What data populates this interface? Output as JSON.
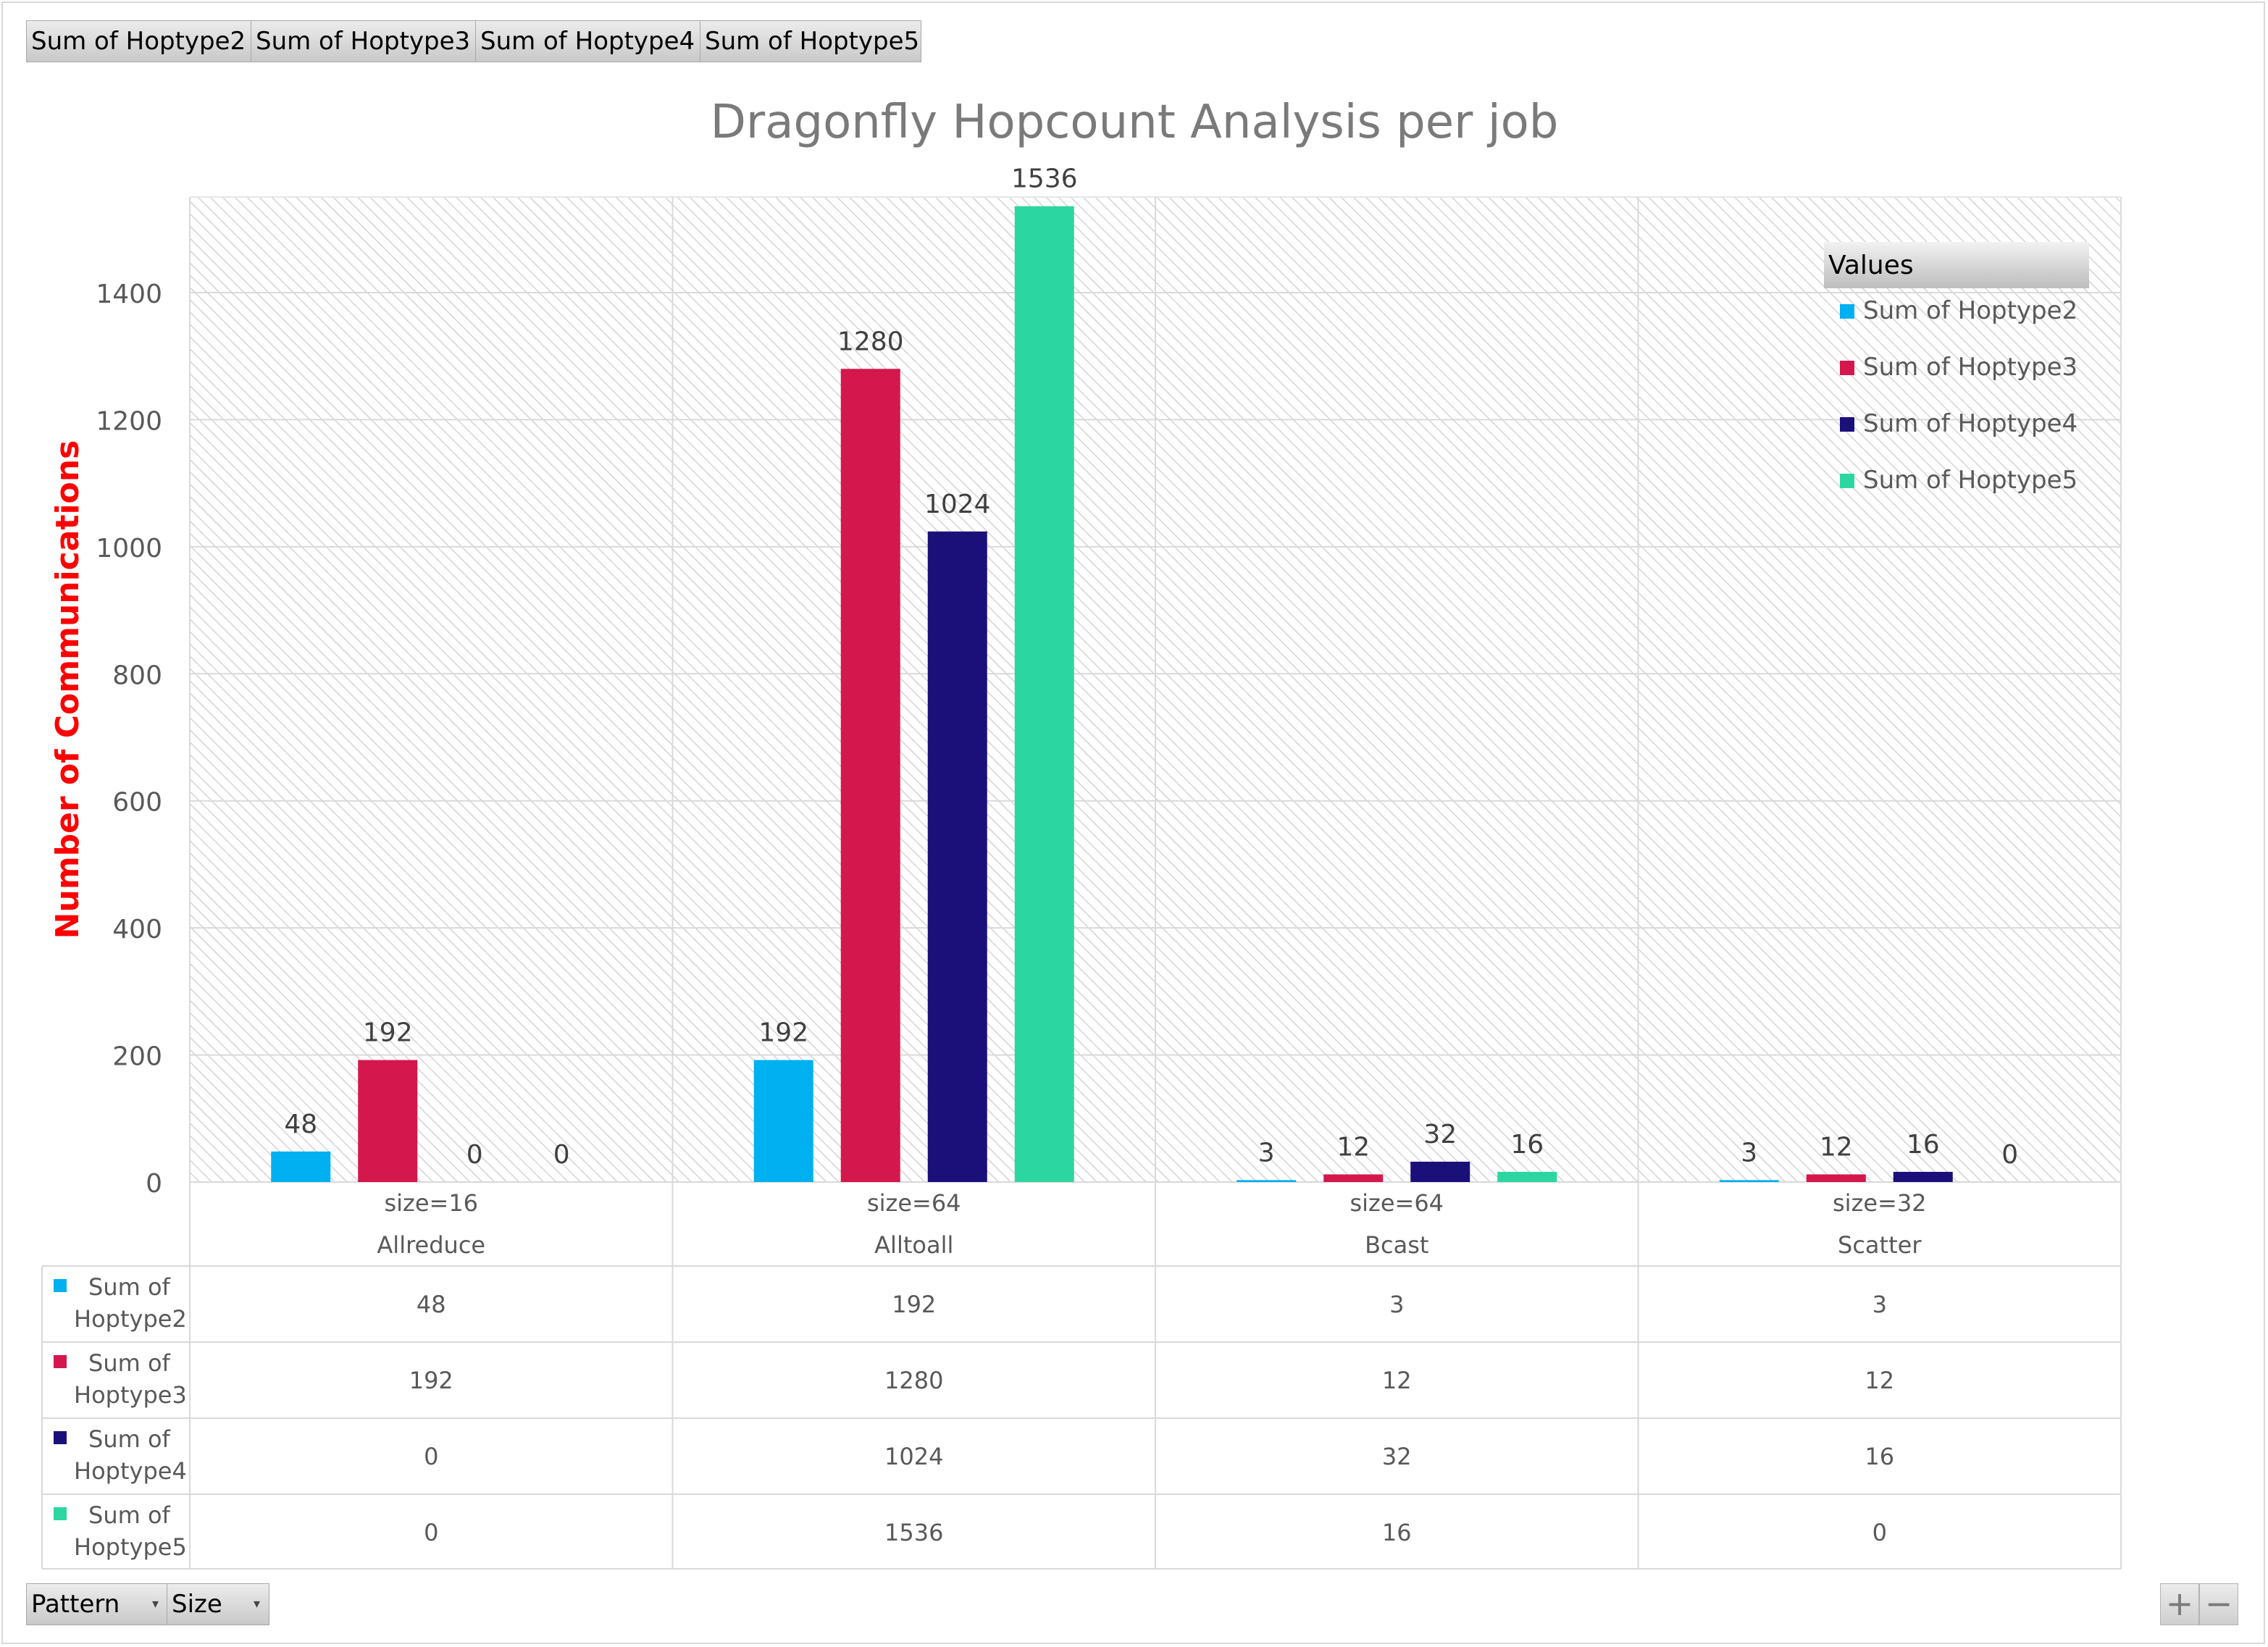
{
  "field_buttons": {
    "values": [
      "Sum of Hoptype2",
      "Sum of Hoptype3",
      "Sum of Hoptype4",
      "Sum of Hoptype5"
    ],
    "axis": [
      "Pattern",
      "Size"
    ]
  },
  "zoom": {
    "plus": "+",
    "minus": "−"
  },
  "chart_data": {
    "type": "bar",
    "title": "Dragonfly Hopcount Analysis per job",
    "ylabel": "Number of Communications",
    "ylim": [
      0,
      1550
    ],
    "yticks": [
      0,
      200,
      400,
      600,
      800,
      1000,
      1200,
      1400
    ],
    "grid": true,
    "categories": [
      {
        "size": "size=16",
        "pattern": "Allreduce"
      },
      {
        "size": "size=64",
        "pattern": "Alltoall"
      },
      {
        "size": "size=64",
        "pattern": "Bcast"
      },
      {
        "size": "size=32",
        "pattern": "Scatter"
      }
    ],
    "legend": {
      "title": "Values",
      "position": "top-right"
    },
    "series": [
      {
        "name": "Sum of Hoptype2",
        "label_lines": [
          "Sum of",
          "Hoptype2"
        ],
        "color": "#00b0f0",
        "values": [
          48,
          192,
          3,
          3
        ]
      },
      {
        "name": "Sum of Hoptype3",
        "label_lines": [
          "Sum of",
          "Hoptype3"
        ],
        "color": "#d4174c",
        "values": [
          192,
          1280,
          12,
          12
        ]
      },
      {
        "name": "Sum of Hoptype4",
        "label_lines": [
          "Sum of",
          "Hoptype4"
        ],
        "color": "#1b0f7a",
        "values": [
          0,
          1024,
          32,
          16
        ]
      },
      {
        "name": "Sum of Hoptype5",
        "label_lines": [
          "Sum of",
          "Hoptype5"
        ],
        "color": "#2cd6a0",
        "values": [
          0,
          1536,
          16,
          0
        ]
      }
    ]
  }
}
